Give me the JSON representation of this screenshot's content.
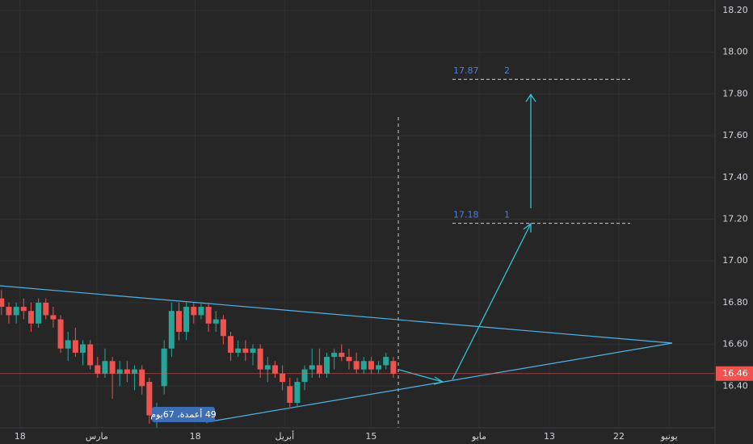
{
  "chart_data": {
    "type": "candlestick",
    "up_color": "#26a69a",
    "down_color": "#ef5350",
    "grid": true,
    "xlim": [
      -0.2,
      96.5
    ],
    "xticks": [
      {
        "value": 2.5,
        "label": "18"
      },
      {
        "value": 12.9,
        "label": "مارس"
      },
      {
        "value": 26.2,
        "label": "18"
      },
      {
        "value": 38.3,
        "label": "أبريل"
      },
      {
        "value": 50,
        "label": "15"
      },
      {
        "value": 64.6,
        "label": "مايو"
      },
      {
        "value": 74.1,
        "label": "13"
      },
      {
        "value": 83.5,
        "label": "22"
      },
      {
        "value": 90.3,
        "label": "يونيو"
      }
    ],
    "ylim": [
      16.2,
      18.25
    ],
    "yticks": [
      {
        "value": 16.4,
        "label": "16.40"
      },
      {
        "value": 16.6,
        "label": "16.60"
      },
      {
        "value": 16.8,
        "label": "16.80"
      },
      {
        "value": 17,
        "label": "17.00"
      },
      {
        "value": 17.2,
        "label": "17.20"
      },
      {
        "value": 17.4,
        "label": "17.40"
      },
      {
        "value": 17.6,
        "label": "17.60"
      },
      {
        "value": 17.8,
        "label": "17.80"
      },
      {
        "value": 18,
        "label": "18.00"
      },
      {
        "value": 18.2,
        "label": "18.20"
      }
    ],
    "open": [
      16.82,
      16.78,
      16.74,
      16.78,
      16.76,
      16.7,
      16.8,
      16.74,
      16.72,
      16.58,
      16.62,
      16.56,
      16.6,
      16.5,
      16.46,
      16.52,
      16.46,
      16.48,
      16.46,
      16.48,
      16.42,
      16.26,
      16.4,
      16.58,
      16.76,
      16.66,
      16.78,
      16.74,
      16.78,
      16.7,
      16.72,
      16.64,
      16.56,
      16.58,
      16.56,
      16.58,
      16.48,
      16.5,
      16.46,
      16.4,
      16.32,
      16.42,
      16.48,
      16.5,
      16.46,
      16.54,
      16.56,
      16.54,
      16.52,
      16.48,
      16.52,
      16.48,
      16.5,
      16.52
    ],
    "high": [
      16.86,
      16.8,
      16.8,
      16.82,
      16.8,
      16.82,
      16.82,
      16.78,
      16.74,
      16.66,
      16.68,
      16.62,
      16.62,
      16.54,
      16.58,
      16.54,
      16.52,
      16.52,
      16.5,
      16.5,
      16.44,
      16.32,
      16.62,
      16.8,
      16.8,
      16.8,
      16.8,
      16.8,
      16.8,
      16.76,
      16.74,
      16.66,
      16.62,
      16.62,
      16.6,
      16.6,
      16.54,
      16.52,
      16.5,
      16.44,
      16.44,
      16.5,
      16.58,
      16.58,
      16.56,
      16.58,
      16.6,
      16.58,
      16.56,
      16.54,
      16.54,
      16.52,
      16.56,
      16.54
    ],
    "low": [
      16.74,
      16.7,
      16.7,
      16.72,
      16.66,
      16.68,
      16.72,
      16.68,
      16.56,
      16.52,
      16.54,
      16.5,
      16.48,
      16.44,
      16.44,
      16.34,
      16.4,
      16.42,
      16.38,
      16.36,
      16.22,
      16.2,
      16.36,
      16.54,
      16.62,
      16.62,
      16.7,
      16.72,
      16.66,
      16.66,
      16.6,
      16.52,
      16.54,
      16.52,
      16.5,
      16.44,
      16.42,
      16.44,
      16.38,
      16.3,
      16.3,
      16.38,
      16.44,
      16.44,
      16.44,
      16.48,
      16.52,
      16.48,
      16.46,
      16.46,
      16.46,
      16.46,
      16.48,
      16.44
    ],
    "close": [
      16.78,
      16.74,
      16.78,
      16.76,
      16.7,
      16.8,
      16.74,
      16.72,
      16.58,
      16.62,
      16.56,
      16.6,
      16.5,
      16.46,
      16.52,
      16.46,
      16.48,
      16.46,
      16.48,
      16.4,
      16.26,
      16.3,
      16.58,
      16.76,
      16.66,
      16.78,
      16.74,
      16.78,
      16.7,
      16.72,
      16.64,
      16.56,
      16.58,
      16.56,
      16.58,
      16.48,
      16.5,
      16.46,
      16.42,
      16.32,
      16.42,
      16.48,
      16.5,
      16.46,
      16.54,
      16.56,
      16.54,
      16.52,
      16.48,
      16.52,
      16.48,
      16.5,
      16.54,
      16.46
    ],
    "last_price": 16.46,
    "levels": [
      {
        "price": 17.87,
        "label": "2"
      },
      {
        "price": 17.18,
        "label": "1"
      }
    ],
    "annotations": {
      "range_label": "49 أعمدة، 67يوم"
    }
  }
}
